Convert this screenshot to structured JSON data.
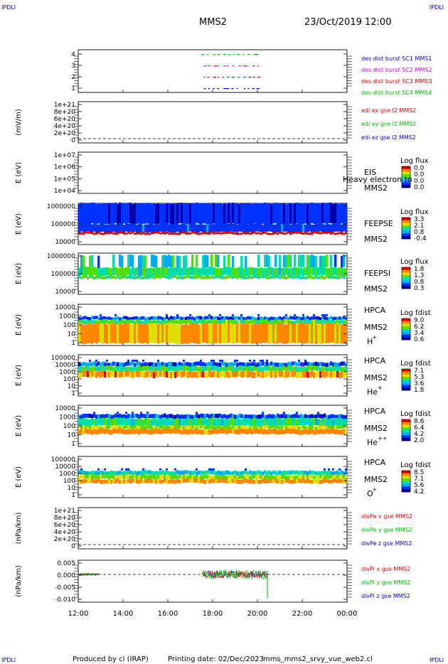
{
  "corner_label": "IPDLI",
  "header": {
    "mission": "MMS2",
    "datetime": "23/Oct/2019 12:00"
  },
  "footer": {
    "produced_by": "Produced by cl (IRAP)",
    "printing_date": "Printing date: 02/Dec/2023",
    "filename": "mms_mms2_srvy_vue_web2.cl"
  },
  "colors": {
    "red": "#dd0000",
    "green": "#00bb00",
    "blue": "#0000cc",
    "magenta": "#dd00dd",
    "colorbar": [
      "#0000aa",
      "#0033ff",
      "#00aaff",
      "#00ddaa",
      "#55dd00",
      "#dddd00",
      "#ff8800",
      "#dd0000"
    ]
  },
  "time_axis": {
    "ticks": [
      "12:00",
      "14:00",
      "16:00",
      "18:00",
      "20:00",
      "22:00",
      "00:00"
    ]
  },
  "chart_data": [
    {
      "id": "burst",
      "type": "scatter",
      "ytick_labels": [
        "4",
        "3",
        "2",
        "1"
      ],
      "legend": [
        {
          "text": "des dist burst SC1 MMS1",
          "color": "blue"
        },
        {
          "text": "des dist burst SC2 MMS2",
          "color": "magenta"
        },
        {
          "text": "des dist burst SC3 MMS3",
          "color": "red"
        },
        {
          "text": "des dist burst SC4 MMS4",
          "color": "green"
        }
      ]
    },
    {
      "id": "edi",
      "type": "line",
      "ylabel": "(mV/m)",
      "ytick_labels": [
        "1e+21",
        "8e+20",
        "6e+20",
        "4e+20",
        "2e+20",
        "0"
      ],
      "legend": [
        {
          "text": "edi ex gse l2 MMS2",
          "color": "red"
        },
        {
          "text": "edi ey gse l2 MMS2",
          "color": "green"
        },
        {
          "text": "edi ez gse l2 MMS2",
          "color": "blue"
        }
      ]
    },
    {
      "id": "eis",
      "type": "heatmap",
      "ylabel": "E (eV)",
      "ytick_labels": [
        "1e+07",
        "1e+06",
        "1e+05",
        "1e+04"
      ],
      "instrument": "EIS",
      "spacecraft": "MMS2",
      "overlay": "Heavy electron to",
      "cb_title": "Log flux",
      "cb_values": [
        "0.0",
        "0.0",
        "0.0",
        "0.0"
      ]
    },
    {
      "id": "feepse",
      "type": "heatmap",
      "ylabel": "E (eV)",
      "ytick_labels": [
        "1000000",
        "100000",
        "10000"
      ],
      "instrument": "FEEPSE",
      "spacecraft": "MMS2",
      "cb_title": "Log flux",
      "cb_values": [
        "3.3",
        "2.1",
        "0.8",
        "-0.4"
      ]
    },
    {
      "id": "feepsi",
      "type": "heatmap",
      "ylabel": "E (eV)",
      "ytick_labels": [
        "1000000",
        "100000",
        "10000"
      ],
      "instrument": "FEEPSI",
      "spacecraft": "MMS2",
      "cb_title": "Log flux",
      "cb_values": [
        "1.8",
        "1.3",
        "0.8",
        "0.3"
      ]
    },
    {
      "id": "hpca_h",
      "type": "heatmap",
      "ylabel": "E (eV)",
      "ytick_labels": [
        "10000",
        "1000",
        "100",
        "10",
        "1"
      ],
      "instrument": "HPCA",
      "spacecraft": "MMS2",
      "species": "H",
      "charge": "+",
      "cb_title": "Log fdist",
      "cb_values": [
        "9.0",
        "6.2",
        "3.4",
        "0.6"
      ]
    },
    {
      "id": "hpca_he",
      "type": "heatmap",
      "ylabel": "E (eV)",
      "ytick_labels": [
        "100000",
        "10000",
        "1000",
        "100",
        "10",
        "1"
      ],
      "instrument": "HPCA",
      "spacecraft": "MMS2",
      "species": "He",
      "charge": "+",
      "cb_title": "Log fdist",
      "cb_values": [
        "7.1",
        "5.3",
        "3.6",
        "1.8"
      ]
    },
    {
      "id": "hpca_he2",
      "type": "heatmap",
      "ylabel": "E (eV)",
      "ytick_labels": [
        "10000",
        "1000",
        "100",
        "10",
        "1"
      ],
      "instrument": "HPCA",
      "spacecraft": "MMS2",
      "species": "He",
      "charge": "++",
      "cb_title": "Log fdist",
      "cb_values": [
        "8.6",
        "6.4",
        "4.2",
        "2.0"
      ]
    },
    {
      "id": "hpca_o",
      "type": "heatmap",
      "ylabel": "E (eV)",
      "ytick_labels": [
        "100000",
        "10000",
        "1000",
        "100",
        "10",
        "1"
      ],
      "instrument": "HPCA",
      "spacecraft": "MMS2",
      "species": "O",
      "charge": "+",
      "cb_title": "Log fdist",
      "cb_values": [
        "8.5",
        "7.1",
        "5.6",
        "4.2"
      ]
    },
    {
      "id": "divpe",
      "type": "line",
      "ylabel": "(nPa/km)",
      "ytick_labels": [
        "1e+21",
        "8e+20",
        "6e+20",
        "4e+20",
        "2e+20",
        "0"
      ],
      "legend": [
        {
          "text": "divPe x gse MMS2",
          "color": "red"
        },
        {
          "text": "divPe y gse MMS2",
          "color": "green"
        },
        {
          "text": "divPe z gse MMS2",
          "color": "blue"
        }
      ]
    },
    {
      "id": "divpi",
      "type": "line",
      "ylabel": "(nPa/km)",
      "ytick_labels": [
        "0.005",
        "0.000",
        "-0.005",
        "-0.010"
      ],
      "legend": [
        {
          "text": "divPi x gse MMS2",
          "color": "red"
        },
        {
          "text": "divPi y gse MMS2",
          "color": "green"
        },
        {
          "text": "divPi z gse MMS2",
          "color": "blue"
        }
      ]
    }
  ]
}
